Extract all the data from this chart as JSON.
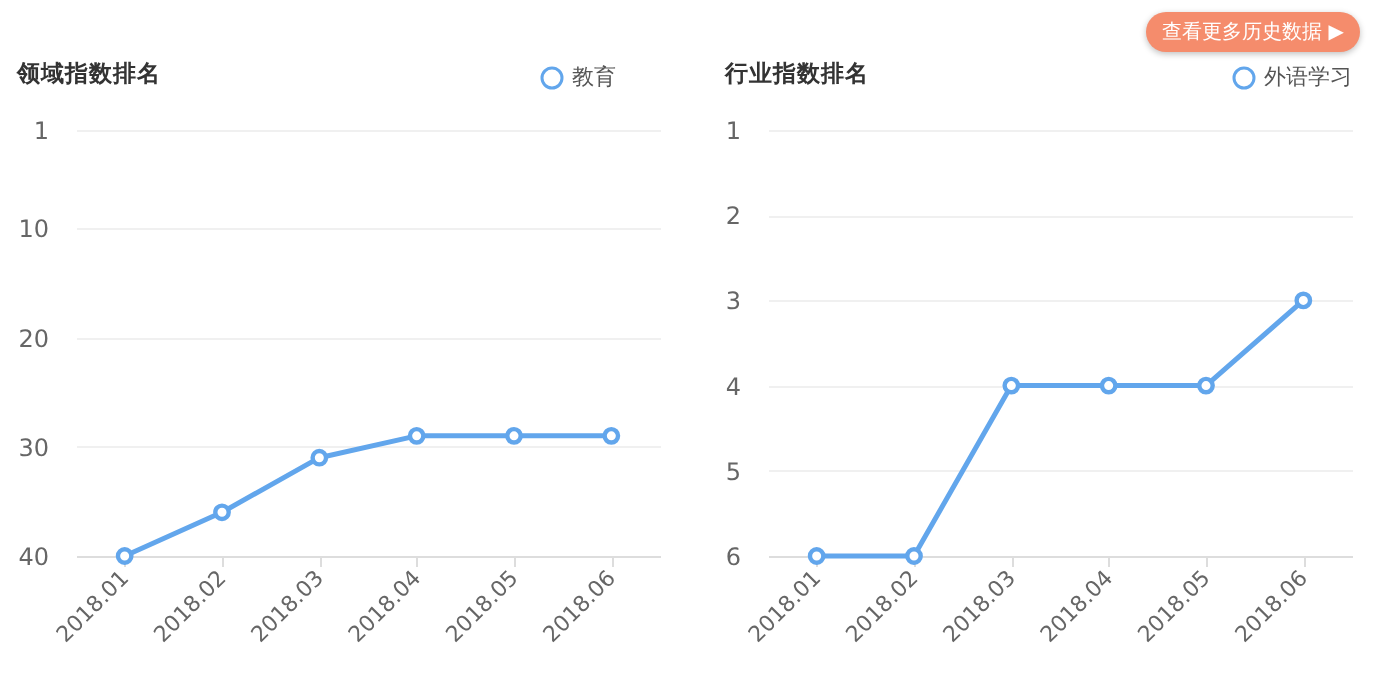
{
  "chart_data": [
    {
      "type": "line",
      "title": "领域指数排名",
      "categories": [
        "2018.01",
        "2018.02",
        "2018.03",
        "2018.04",
        "2018.05",
        "2018.06"
      ],
      "series": [
        {
          "name": "教育",
          "color": "#62a6ec",
          "values": [
            40,
            36,
            31,
            29,
            29,
            29
          ]
        }
      ],
      "ylim": [
        40,
        1
      ],
      "yticks": [
        1,
        10,
        20,
        30,
        40
      ],
      "grid": "y",
      "legend": "top right",
      "marker": "circle",
      "line_style": "solid"
    },
    {
      "type": "line",
      "title": "行业指数排名",
      "categories": [
        "2018.01",
        "2018.02",
        "2018.03",
        "2018.04",
        "2018.05",
        "2018.06"
      ],
      "series": [
        {
          "name": "外语学习",
          "color": "#62a6ec",
          "values": [
            6,
            6,
            4,
            4,
            4,
            3
          ]
        }
      ],
      "ylim": [
        6,
        1
      ],
      "yticks": [
        1,
        2,
        3,
        4,
        5,
        6
      ],
      "grid": "y",
      "legend": "top right",
      "marker": "circle",
      "line_style": "solid",
      "annotations": [
        "查看更多历史数据 ▶"
      ]
    }
  ]
}
